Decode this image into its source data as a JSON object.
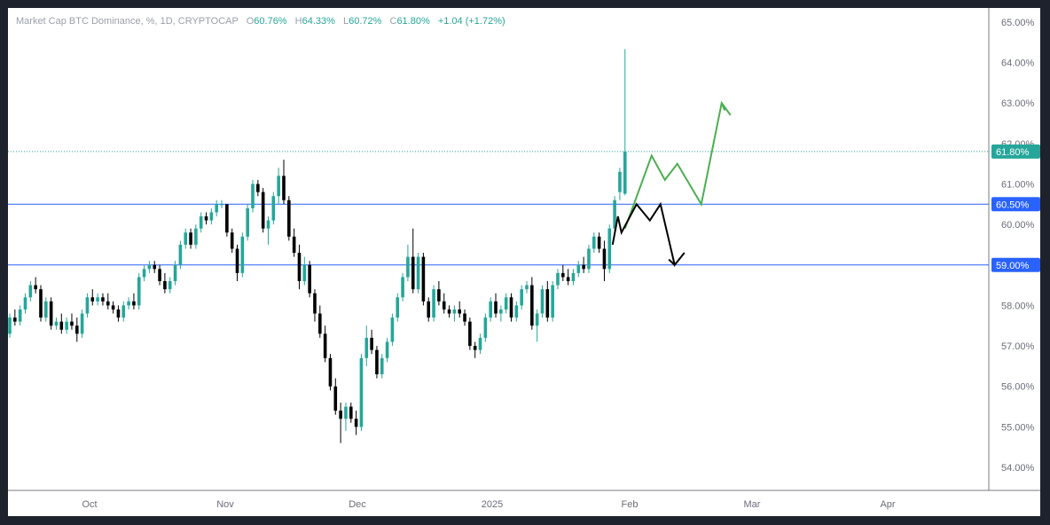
{
  "legend": {
    "symbol": "Market Cap BTC Dominance, %, 1D, CRYPTOCAP",
    "open_label": "O",
    "open": "60.76%",
    "high_label": "H",
    "high": "64.33%",
    "low_label": "L",
    "low": "60.72%",
    "close_label": "C",
    "close": "61.80%",
    "change": "+1.04 (+1.72%)"
  },
  "chart_data": {
    "type": "candlestick",
    "ylim": [
      53.6,
      65.3
    ],
    "y_ticks": [
      "54.00%",
      "55.00%",
      "56.00%",
      "57.00%",
      "58.00%",
      "59.00%",
      "60.00%",
      "61.00%",
      "62.00%",
      "63.00%",
      "64.00%",
      "65.00%"
    ],
    "x_ticks": [
      "Oct",
      "Nov",
      "Dec",
      "2025",
      "Feb",
      "Mar",
      "Apr"
    ],
    "horizontal_lines": [
      {
        "value": 60.5,
        "label": "60.50%",
        "color": "#2962ff"
      },
      {
        "value": 59.0,
        "label": "59.00%",
        "color": "#2962ff"
      }
    ],
    "last_price": {
      "value": 61.8,
      "label": "61.80%",
      "color": "#26a69a"
    },
    "candles": [
      [
        57.3,
        57.8,
        57.2,
        57.7
      ],
      [
        57.7,
        57.9,
        57.5,
        57.6
      ],
      [
        57.6,
        58.0,
        57.5,
        57.9
      ],
      [
        57.9,
        58.3,
        57.8,
        58.2
      ],
      [
        58.2,
        58.6,
        58.1,
        58.5
      ],
      [
        58.5,
        58.7,
        58.3,
        58.4
      ],
      [
        58.4,
        58.5,
        57.6,
        57.7
      ],
      [
        57.7,
        58.2,
        57.6,
        58.1
      ],
      [
        58.1,
        58.2,
        57.4,
        57.5
      ],
      [
        57.5,
        57.7,
        57.4,
        57.6
      ],
      [
        57.6,
        57.8,
        57.3,
        57.4
      ],
      [
        57.4,
        57.7,
        57.3,
        57.6
      ],
      [
        57.6,
        57.8,
        57.4,
        57.5
      ],
      [
        57.5,
        57.7,
        57.1,
        57.3
      ],
      [
        57.3,
        57.9,
        57.2,
        57.8
      ],
      [
        57.8,
        58.3,
        57.7,
        58.2
      ],
      [
        58.2,
        58.4,
        58.0,
        58.1
      ],
      [
        58.1,
        58.3,
        58.0,
        58.2
      ],
      [
        58.2,
        58.3,
        58.0,
        58.1
      ],
      [
        58.1,
        58.3,
        57.9,
        58.0
      ],
      [
        58.0,
        58.1,
        57.8,
        57.9
      ],
      [
        57.9,
        58.0,
        57.6,
        57.7
      ],
      [
        57.7,
        58.1,
        57.6,
        58.0
      ],
      [
        58.0,
        58.2,
        57.9,
        58.1
      ],
      [
        58.1,
        58.3,
        57.9,
        58.0
      ],
      [
        58.0,
        58.8,
        57.9,
        58.7
      ],
      [
        58.7,
        59.0,
        58.6,
        58.9
      ],
      [
        58.9,
        59.1,
        58.8,
        59.0
      ],
      [
        59.0,
        59.1,
        58.8,
        58.9
      ],
      [
        58.9,
        59.0,
        58.5,
        58.6
      ],
      [
        58.6,
        58.8,
        58.3,
        58.4
      ],
      [
        58.4,
        58.7,
        58.3,
        58.6
      ],
      [
        58.6,
        59.1,
        58.5,
        59.0
      ],
      [
        59.0,
        59.6,
        58.9,
        59.5
      ],
      [
        59.5,
        59.9,
        59.4,
        59.8
      ],
      [
        59.8,
        59.9,
        59.4,
        59.5
      ],
      [
        59.5,
        60.0,
        59.4,
        59.9
      ],
      [
        59.9,
        60.3,
        59.8,
        60.2
      ],
      [
        60.2,
        60.3,
        60.0,
        60.1
      ],
      [
        60.1,
        60.4,
        60.0,
        60.3
      ],
      [
        60.3,
        60.6,
        60.2,
        60.5
      ],
      [
        60.5,
        60.6,
        60.4,
        60.5
      ],
      [
        60.5,
        60.5,
        59.7,
        59.8
      ],
      [
        59.8,
        59.9,
        59.3,
        59.4
      ],
      [
        59.4,
        59.5,
        58.6,
        58.8
      ],
      [
        58.8,
        59.8,
        58.7,
        59.7
      ],
      [
        59.7,
        60.5,
        59.6,
        60.4
      ],
      [
        60.4,
        61.1,
        60.3,
        61.0
      ],
      [
        61.0,
        61.1,
        60.7,
        60.8
      ],
      [
        60.8,
        60.9,
        59.8,
        59.9
      ],
      [
        59.9,
        60.2,
        59.5,
        60.1
      ],
      [
        60.1,
        60.8,
        60.0,
        60.7
      ],
      [
        60.7,
        61.4,
        60.5,
        61.2
      ],
      [
        61.2,
        61.6,
        60.5,
        60.6
      ],
      [
        60.6,
        60.7,
        59.6,
        59.7
      ],
      [
        59.7,
        59.9,
        59.2,
        59.3
      ],
      [
        59.3,
        59.5,
        58.4,
        58.6
      ],
      [
        58.6,
        59.2,
        58.5,
        59.0
      ],
      [
        59.0,
        59.1,
        58.2,
        58.3
      ],
      [
        58.3,
        58.4,
        57.6,
        57.8
      ],
      [
        57.8,
        58.0,
        57.2,
        57.3
      ],
      [
        57.3,
        57.5,
        56.6,
        56.7
      ],
      [
        56.7,
        56.8,
        55.9,
        56.0
      ],
      [
        56.0,
        56.2,
        55.3,
        55.4
      ],
      [
        55.4,
        55.6,
        54.6,
        55.2
      ],
      [
        55.2,
        55.6,
        54.9,
        55.5
      ],
      [
        55.5,
        55.6,
        55.1,
        55.2
      ],
      [
        55.2,
        55.4,
        54.8,
        55.0
      ],
      [
        55.0,
        56.8,
        54.9,
        56.7
      ],
      [
        56.7,
        57.5,
        56.5,
        57.2
      ],
      [
        57.2,
        57.4,
        56.8,
        56.9
      ],
      [
        56.9,
        57.0,
        56.2,
        56.3
      ],
      [
        56.3,
        56.8,
        56.2,
        56.7
      ],
      [
        56.7,
        57.2,
        56.6,
        57.1
      ],
      [
        57.1,
        57.8,
        57.0,
        57.7
      ],
      [
        57.7,
        58.3,
        57.6,
        58.2
      ],
      [
        58.2,
        58.8,
        58.1,
        58.7
      ],
      [
        58.7,
        59.5,
        58.6,
        59.2
      ],
      [
        59.2,
        59.9,
        58.3,
        58.4
      ],
      [
        58.4,
        59.3,
        58.3,
        59.2
      ],
      [
        59.2,
        59.3,
        58.0,
        58.1
      ],
      [
        58.1,
        58.2,
        57.6,
        57.7
      ],
      [
        57.7,
        58.5,
        57.6,
        58.4
      ],
      [
        58.4,
        58.6,
        58.0,
        58.1
      ],
      [
        58.1,
        58.3,
        57.8,
        57.9
      ],
      [
        57.9,
        58.0,
        57.7,
        57.8
      ],
      [
        57.8,
        58.0,
        57.6,
        57.9
      ],
      [
        57.9,
        58.1,
        57.7,
        57.8
      ],
      [
        57.8,
        57.9,
        57.5,
        57.6
      ],
      [
        57.6,
        57.7,
        56.9,
        57.0
      ],
      [
        57.0,
        57.1,
        56.7,
        56.9
      ],
      [
        56.9,
        57.3,
        56.8,
        57.2
      ],
      [
        57.2,
        57.8,
        57.1,
        57.7
      ],
      [
        57.7,
        58.2,
        57.6,
        58.1
      ],
      [
        58.1,
        58.3,
        57.7,
        57.8
      ],
      [
        57.8,
        58.0,
        57.6,
        57.9
      ],
      [
        57.9,
        58.3,
        57.8,
        58.2
      ],
      [
        58.2,
        58.3,
        57.6,
        57.7
      ],
      [
        57.7,
        58.1,
        57.6,
        58.0
      ],
      [
        58.0,
        58.5,
        57.9,
        58.4
      ],
      [
        58.4,
        58.6,
        58.3,
        58.5
      ],
      [
        58.5,
        58.7,
        57.4,
        57.5
      ],
      [
        57.5,
        57.9,
        57.1,
        57.8
      ],
      [
        57.8,
        58.5,
        57.7,
        58.4
      ],
      [
        58.4,
        58.6,
        57.6,
        57.7
      ],
      [
        57.7,
        58.6,
        57.6,
        58.5
      ],
      [
        58.5,
        58.9,
        58.4,
        58.8
      ],
      [
        58.8,
        59.0,
        58.6,
        58.7
      ],
      [
        58.7,
        58.9,
        58.5,
        58.6
      ],
      [
        58.6,
        58.9,
        58.5,
        58.8
      ],
      [
        58.8,
        59.1,
        58.7,
        59.0
      ],
      [
        59.0,
        59.2,
        58.8,
        58.9
      ],
      [
        58.9,
        59.5,
        58.8,
        59.4
      ],
      [
        59.4,
        59.8,
        59.3,
        59.7
      ],
      [
        59.7,
        59.8,
        59.3,
        59.4
      ],
      [
        59.4,
        59.6,
        58.6,
        58.9
      ],
      [
        58.9,
        60.0,
        58.8,
        59.9
      ],
      [
        59.9,
        60.7,
        59.8,
        60.6
      ],
      [
        60.8,
        61.4,
        60.6,
        61.3
      ],
      [
        60.76,
        64.33,
        60.72,
        61.8
      ]
    ],
    "projections": [
      {
        "name": "",
        "color": "#4caf50",
        "points": [
          [
            0,
            59.9
          ],
          [
            30,
            61.7
          ],
          [
            45,
            61.1
          ],
          [
            59,
            61.5
          ],
          [
            86,
            60.5
          ],
          [
            109,
            63.0
          ],
          [
            119,
            62.7
          ]
        ]
      },
      {
        "name": "",
        "color": "#000000",
        "points": [
          [
            -14,
            59.5
          ],
          [
            -8,
            60.2
          ],
          [
            -4,
            59.8
          ],
          [
            13,
            60.5
          ],
          [
            28,
            60.1
          ],
          [
            40,
            60.5
          ],
          [
            56,
            59.0
          ],
          [
            67,
            59.3
          ]
        ]
      }
    ]
  },
  "colors": {
    "up": "#26a69a",
    "down": "#000000",
    "axis_text": "#6a6d78",
    "hline": "#2962ff",
    "border": "#787b86"
  }
}
